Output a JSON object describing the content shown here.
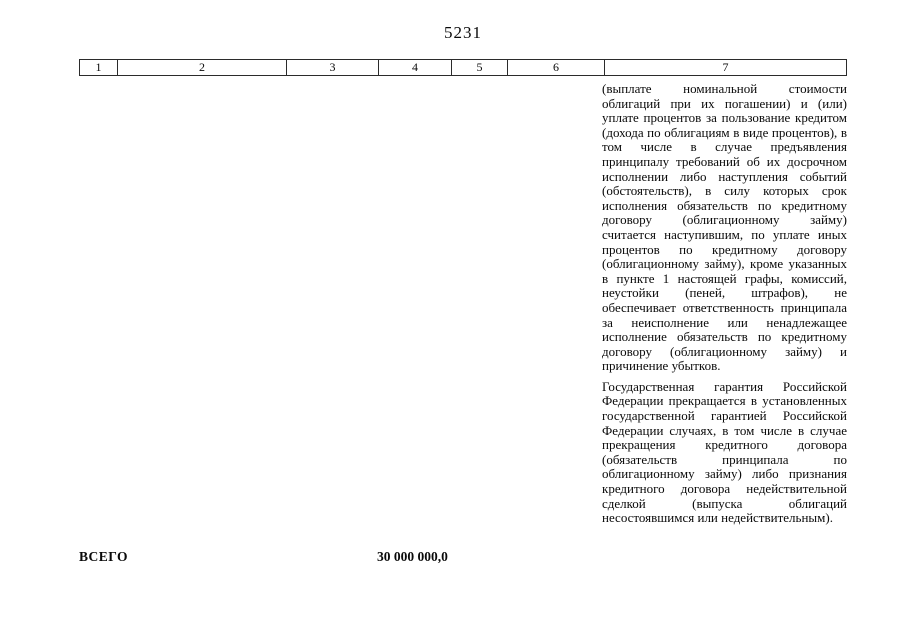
{
  "page": {
    "number": "5231"
  },
  "table": {
    "header_cells": [
      "1",
      "2",
      "3",
      "4",
      "5",
      "6",
      "7"
    ]
  },
  "content": {
    "paragraphs": [
      "(выплате номинальной стоимости облигаций при их погашении) и (или) уплате процентов за пользование кредитом (дохода по облигациям в виде процентов), в том числе в случае предъявления принципалу требований об их досрочном исполнении либо наступления событий (обстоятельств), в силу которых срок исполнения обязательств по кредитному договору (облигационному займу) считается наступившим, по уплате иных процентов по кредитному договору (облигационному займу), кроме указанных в пункте 1 настоящей графы, комиссий, неустойки (пеней, штрафов), не обеспечивает ответственность принципала за неисполнение или ненадлежащее исполнение обязательств по кредитному договору (облигационному займу) и причинение убытков.",
      "Государственная гарантия Российской Федерации прекращается в установленных государственной гарантией Российской Федерации случаях, в том числе в случае прекращения кредитного договора (обязательств принципала по облигационному займу) либо признания кредитного договора недействительной сделкой (выпуска облигаций несостоявшимся или недействительным)."
    ]
  },
  "footer": {
    "total_label": "ВСЕГО",
    "total_value": "30 000 000,0"
  }
}
